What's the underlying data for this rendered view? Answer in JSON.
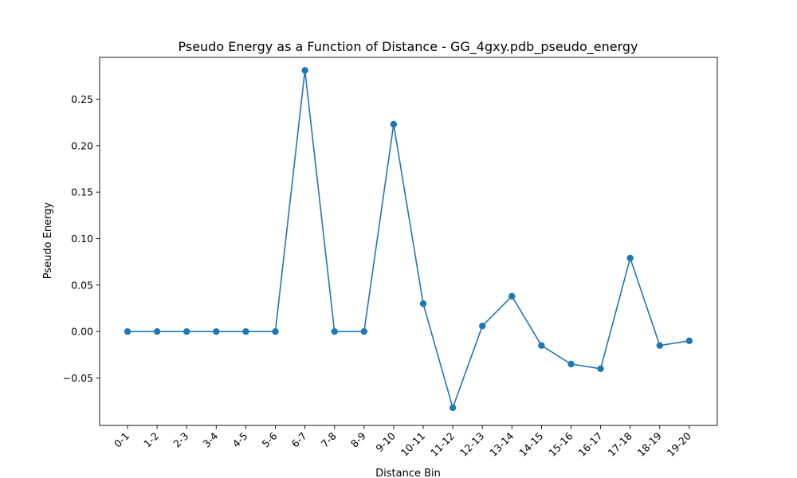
{
  "chart_data": {
    "type": "line",
    "title": "Pseudo Energy as a Function of Distance - GG_4gxy.pdb_pseudo_energy",
    "xlabel": "Distance Bin",
    "ylabel": "Pseudo Energy",
    "categories": [
      "0-1",
      "1-2",
      "2-3",
      "3-4",
      "4-5",
      "5-6",
      "6-7",
      "7-8",
      "8-9",
      "9-10",
      "10-11",
      "11-12",
      "12-13",
      "13-14",
      "14-15",
      "15-16",
      "16-17",
      "17-18",
      "18-19",
      "19-20"
    ],
    "values": [
      0.0,
      0.0,
      0.0,
      0.0,
      0.0,
      0.0,
      0.281,
      0.0,
      0.0,
      0.223,
      0.03,
      -0.082,
      0.006,
      0.038,
      -0.015,
      -0.035,
      -0.04,
      0.079,
      -0.015,
      -0.01
    ],
    "ylim": [
      -0.101,
      0.295
    ],
    "yticks": [
      -0.05,
      0.0,
      0.05,
      0.1,
      0.15,
      0.2,
      0.25
    ],
    "ytick_labels": [
      "−0.05",
      "0.00",
      "0.05",
      "0.10",
      "0.15",
      "0.20",
      "0.25"
    ],
    "grid": false,
    "color": "#1f77b4",
    "marker": "circle"
  }
}
